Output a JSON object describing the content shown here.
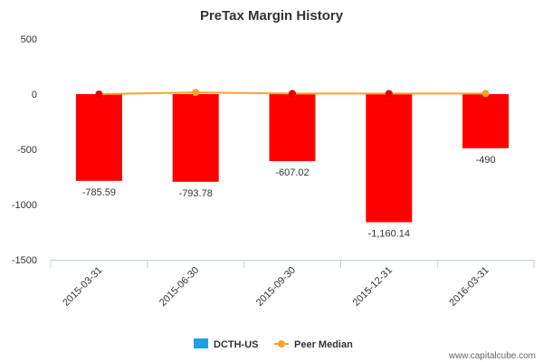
{
  "chart_data": {
    "type": "bar",
    "title": "PreTax Margin History",
    "xlabel": "",
    "ylabel": "",
    "categories": [
      "2015-03-31",
      "2015-06-30",
      "2015-09-30",
      "2015-12-31",
      "2016-03-31"
    ],
    "series": [
      {
        "name": "DCTH-US",
        "type": "bar",
        "values": [
          -785.59,
          -793.78,
          -607.02,
          -1160.14,
          -490
        ],
        "data_labels": [
          "-785.59",
          "-793.78",
          "-607.02",
          "-1,160.14",
          "-490"
        ]
      },
      {
        "name": "Peer Median",
        "type": "line",
        "values": [
          0,
          15,
          5,
          5,
          5
        ]
      }
    ],
    "ylim": [
      -1500,
      500
    ],
    "yticks": [
      500,
      0,
      -500,
      -1000,
      -1500
    ],
    "ytick_labels": [
      "500",
      "0",
      "-500",
      "-1000",
      "-1500"
    ],
    "grid": false,
    "legend": "bottom-center"
  },
  "colors": {
    "bar": "#ff0000",
    "legend_bar": "#1e9fe8",
    "peer_line": "#f7a22c",
    "bar_marker": "#e00000",
    "axis": "#c0d0e0"
  },
  "credit": "www.capitalcube.com"
}
